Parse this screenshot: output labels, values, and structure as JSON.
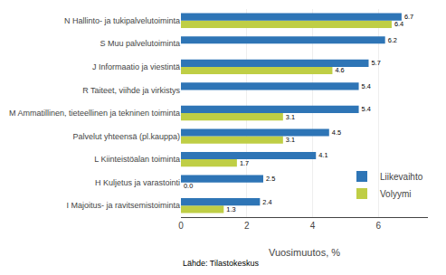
{
  "chart_data": {
    "type": "bar",
    "orientation": "horizontal",
    "categories": [
      "I Majoitus- ja ravitsemistoiminta",
      "H Kuljetus ja varastointi",
      "L Kiinteistöalan toiminta",
      "Palvelut yhteensä (pl.kauppa)",
      "M Ammatillinen, tieteellinen ja tekninen toiminta",
      "R Taiteet, viihde ja virkistys",
      "J Informaatio ja viestintä",
      "S Muu palvelutoiminta",
      "N Hallinto- ja tukipalvelutoiminta"
    ],
    "series": [
      {
        "name": "Liikevaihto",
        "color": "#2E75B6",
        "values": [
          2.4,
          2.5,
          4.1,
          4.5,
          5.4,
          5.4,
          5.7,
          6.2,
          6.7
        ]
      },
      {
        "name": "Volyymi",
        "color": "#BFCE45",
        "values": [
          1.3,
          0.0,
          1.7,
          3.1,
          3.1,
          null,
          4.6,
          null,
          6.4
        ],
        "value_labels": [
          "1.3",
          "0.0",
          "1.7",
          "3.1",
          "3.1",
          null,
          "4.6",
          null,
          "6.4"
        ]
      }
    ],
    "xlabel": "Vuosimuutos, %",
    "xlim": [
      0,
      7.5
    ],
    "xticks": [
      0,
      2,
      4,
      6
    ],
    "grid": true,
    "legend": "lower right",
    "data_labels": true,
    "annotations": [
      "Lähde: Tilastokeskus"
    ]
  }
}
